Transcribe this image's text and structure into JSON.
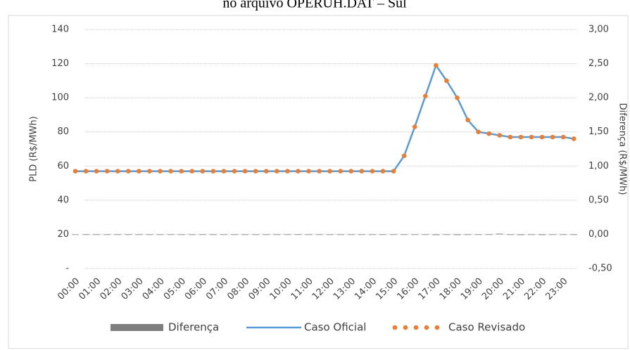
{
  "chart_data": {
    "type": "combo",
    "title": "no arquivo OPERUH.DAT – Sul",
    "y_label": "PLD (R$/MWh)",
    "y2_label": "Diferença (R$/MWh)",
    "categories": [
      "00:00",
      null,
      "01:00",
      null,
      "02:00",
      null,
      "03:00",
      null,
      "04:00",
      null,
      "05:00",
      null,
      "06:00",
      null,
      "07:00",
      null,
      "08:00",
      null,
      "09:00",
      null,
      "10:00",
      null,
      "11:00",
      null,
      "12:00",
      null,
      "13:00",
      null,
      "14:00",
      null,
      "15:00",
      null,
      "16:00",
      null,
      "17:00",
      null,
      "18:00",
      null,
      "19:00",
      null,
      "20:00",
      null,
      "21:00",
      null,
      "22:00",
      null,
      "23:00",
      null
    ],
    "ylim": [
      0,
      140
    ],
    "yticks": [
      {
        "value": 0,
        "label": "-"
      },
      20,
      40,
      60,
      80,
      100,
      120,
      140
    ],
    "y2lim": [
      -0.5,
      3.0
    ],
    "y2ticks": [
      {
        "value": -0.5,
        "label": "-0,50"
      },
      {
        "value": 0,
        "label": "0,00"
      },
      {
        "value": 0.5,
        "label": "0,50"
      },
      {
        "value": 1,
        "label": "1,00"
      },
      {
        "value": 1.5,
        "label": "1,50"
      },
      {
        "value": 2,
        "label": "2,00"
      },
      {
        "value": 2.5,
        "label": "2,50"
      },
      {
        "value": 3,
        "label": "3,00"
      }
    ],
    "grid": true,
    "legend": "bottom",
    "series": [
      {
        "name": "Diferença",
        "type": "bar",
        "axis": "y2",
        "color": "#7f7f7f",
        "values": [
          0,
          0,
          0,
          0,
          0,
          0,
          0,
          0,
          0,
          0,
          0,
          0,
          0,
          0,
          0,
          0,
          0,
          0,
          0,
          0,
          0,
          0,
          0,
          0,
          0,
          0,
          0,
          0,
          0,
          0,
          0,
          0,
          0,
          0,
          -0.01,
          0,
          -0.01,
          0,
          0,
          0,
          0.01,
          0,
          -0.01,
          0,
          -0.01,
          0,
          0,
          0
        ]
      },
      {
        "name": "Caso Oficial",
        "type": "line",
        "color": "#5b9bd5",
        "values": [
          57,
          57,
          57,
          57,
          57,
          57,
          57,
          57,
          57,
          57,
          57,
          57,
          57,
          57,
          57,
          57,
          57,
          57,
          57,
          57,
          57,
          57,
          57,
          57,
          57,
          57,
          57,
          57,
          57,
          57,
          57,
          66,
          83,
          101,
          119,
          110,
          100,
          87,
          80,
          79,
          78,
          77,
          77,
          77,
          77,
          77,
          77,
          76
        ]
      },
      {
        "name": "Caso Revisado",
        "type": "dots",
        "color": "#ed7d31",
        "values": [
          57,
          57,
          57,
          57,
          57,
          57,
          57,
          57,
          57,
          57,
          57,
          57,
          57,
          57,
          57,
          57,
          57,
          57,
          57,
          57,
          57,
          57,
          57,
          57,
          57,
          57,
          57,
          57,
          57,
          57,
          57,
          66,
          83,
          101,
          119,
          110,
          100,
          87,
          80,
          79,
          78,
          77,
          77,
          77,
          77,
          77,
          77,
          76
        ]
      }
    ]
  }
}
